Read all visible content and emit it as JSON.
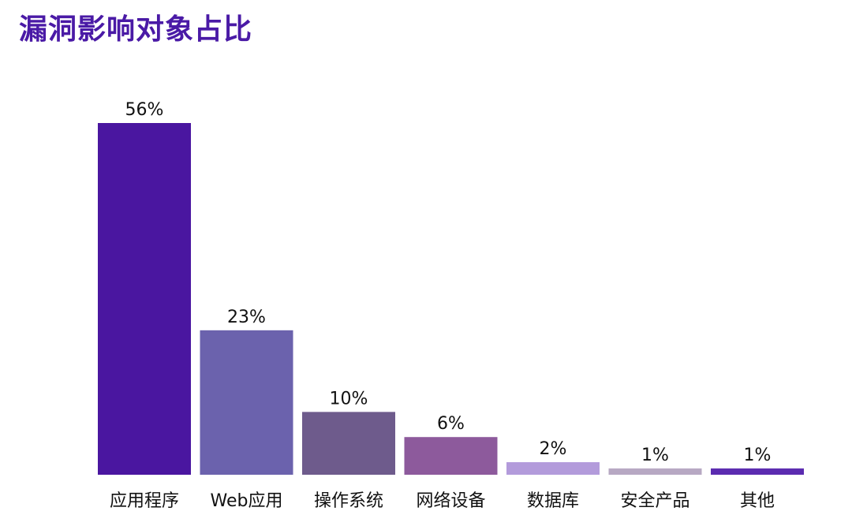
{
  "title": "漏洞影响对象占比",
  "colors": {
    "title": "#4a1aa6"
  },
  "chart_data": {
    "type": "bar",
    "title": "漏洞影响对象占比",
    "xlabel": "",
    "ylabel": "",
    "ylim": [
      0,
      56
    ],
    "grid": false,
    "legend": "none",
    "categories": [
      "应用程序",
      "Web应用",
      "操作系统",
      "网络设备",
      "数据库",
      "安全产品",
      "其他"
    ],
    "values": [
      56,
      23,
      10,
      6,
      2,
      1,
      1
    ],
    "value_labels": [
      "56%",
      "23%",
      "10%",
      "6%",
      "2%",
      "1%",
      "1%"
    ],
    "bar_colors": [
      "#4a16a0",
      "#6b62ad",
      "#6e5b8c",
      "#8d5a9c",
      "#b39bdb",
      "#b7a8c3",
      "#5b2bb0"
    ]
  }
}
